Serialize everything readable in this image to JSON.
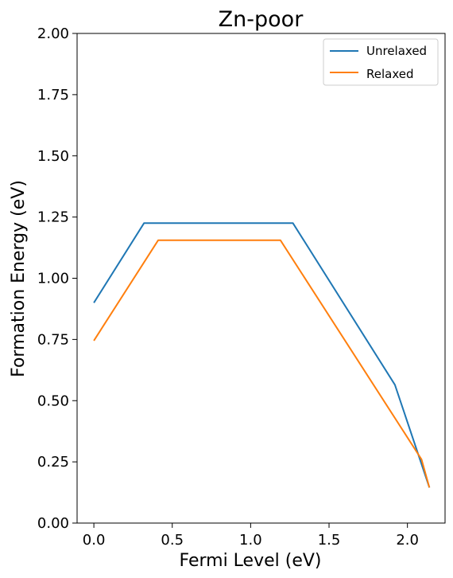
{
  "chart_data": {
    "type": "line",
    "title": "Zn-poor",
    "xlabel": "Fermi Level (eV)",
    "ylabel": "Formation Energy (eV)",
    "xlim": [
      -0.107,
      2.24
    ],
    "ylim": [
      0.0,
      2.0
    ],
    "xticks": [
      0.0,
      0.5,
      1.0,
      1.5,
      2.0
    ],
    "xtick_labels": [
      "0.0",
      "0.5",
      "1.0",
      "1.5",
      "2.0"
    ],
    "yticks": [
      0.0,
      0.25,
      0.5,
      0.75,
      1.0,
      1.25,
      1.5,
      1.75,
      2.0
    ],
    "ytick_labels": [
      "0.00",
      "0.25",
      "0.50",
      "0.75",
      "1.00",
      "1.25",
      "1.50",
      "1.75",
      "2.00"
    ],
    "grid": false,
    "legend_position": "top-right",
    "series": [
      {
        "name": "Unrelaxed",
        "color": "#1f77b4",
        "x": [
          0.0,
          0.32,
          1.27,
          1.92,
          2.14
        ],
        "y": [
          0.9,
          1.225,
          1.225,
          0.565,
          0.145
        ]
      },
      {
        "name": "Relaxed",
        "color": "#ff7f0e",
        "x": [
          0.0,
          0.41,
          1.19,
          2.09,
          2.14
        ],
        "y": [
          0.745,
          1.155,
          1.155,
          0.26,
          0.145
        ]
      }
    ]
  }
}
